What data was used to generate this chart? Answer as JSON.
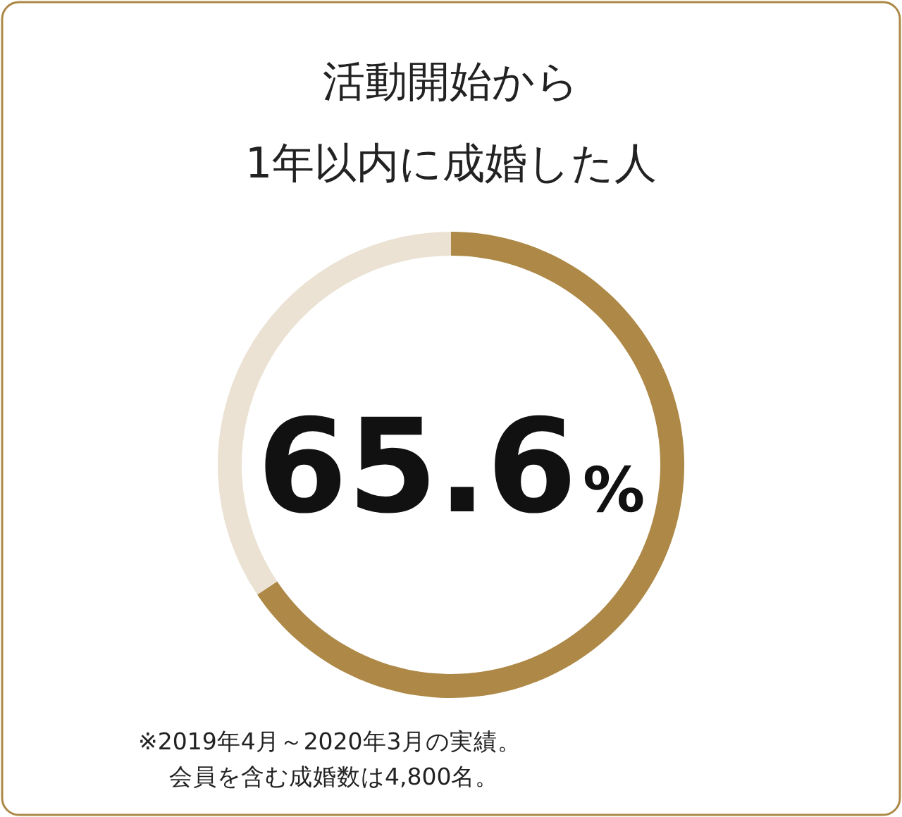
{
  "chart_data": {
    "type": "donut",
    "title": "活動開始から\n1年以内に成婚した人",
    "categories": [
      null,
      null
    ],
    "values": [
      65.6,
      34.4
    ],
    "colors": [
      "#ad8846",
      "#ebe2d3"
    ],
    "value_labels": [
      "65.6%",
      null
    ],
    "annotations": [
      "※2019年4月～2020年3月の実績。",
      "会員を含む成婚数は4,800名。"
    ]
  }
}
